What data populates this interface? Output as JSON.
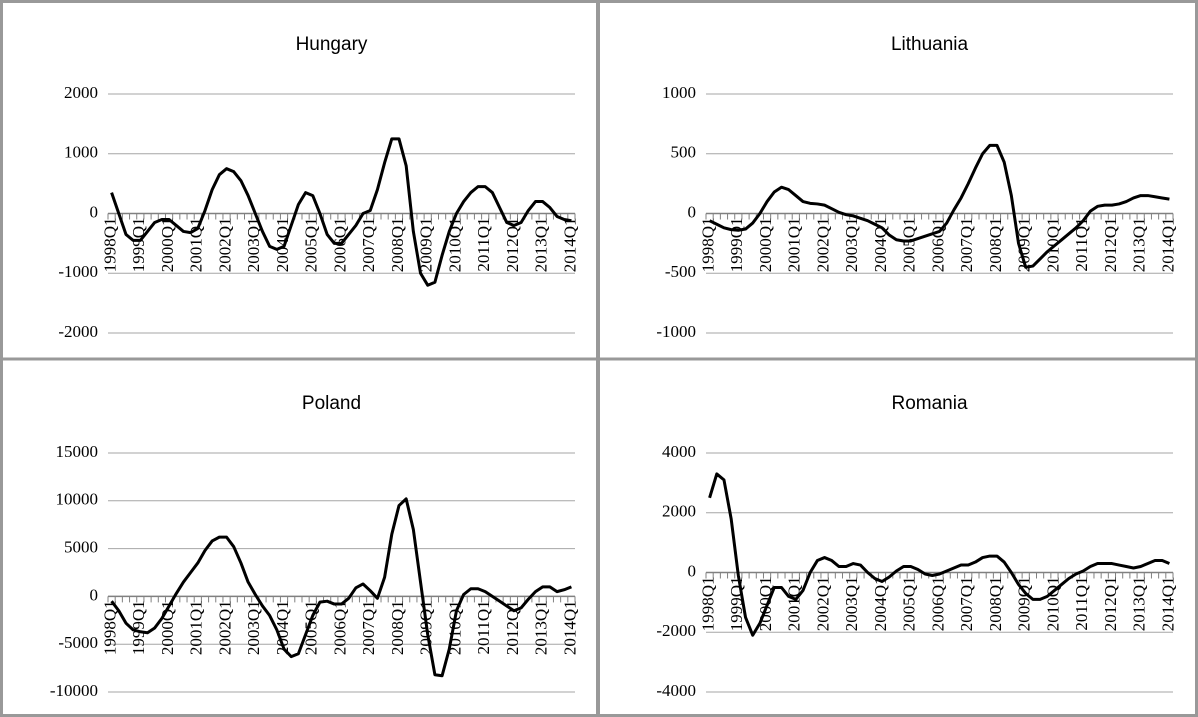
{
  "chart_data": [
    {
      "type": "line",
      "title": "Hungary",
      "color": "#000000",
      "grid": true,
      "categories": [
        "1998Q1",
        null,
        null,
        null,
        "1999Q1",
        null,
        null,
        null,
        "2000Q1",
        null,
        null,
        null,
        "2001Q1",
        null,
        null,
        null,
        "2002Q1",
        null,
        null,
        null,
        "2003Q1",
        null,
        null,
        null,
        "2004Q1",
        null,
        null,
        null,
        "2005Q1",
        null,
        null,
        null,
        "2006Q1",
        null,
        null,
        null,
        "2007Q1",
        null,
        null,
        null,
        "2008Q1",
        null,
        null,
        null,
        "2009Q1",
        null,
        null,
        null,
        "2010Q1",
        null,
        null,
        null,
        "2011Q1",
        null,
        null,
        null,
        "2012Q1",
        null,
        null,
        null,
        "2013Q1",
        null,
        null,
        null,
        "2014Q1"
      ],
      "values": [
        350,
        0,
        -350,
        -450,
        -450,
        -300,
        -150,
        -100,
        -100,
        -200,
        -300,
        -320,
        -250,
        50,
        400,
        650,
        750,
        700,
        550,
        300,
        0,
        -300,
        -550,
        -600,
        -550,
        -200,
        150,
        350,
        300,
        0,
        -350,
        -500,
        -500,
        -350,
        -200,
        0,
        50,
        400,
        850,
        1250,
        1250,
        800,
        -300,
        -1000,
        -1200,
        -1150,
        -700,
        -300,
        0,
        200,
        350,
        450,
        450,
        350,
        100,
        -150,
        -200,
        -150,
        50,
        200,
        200,
        100,
        -50,
        -100,
        -120
      ],
      "ylim": [
        -2000,
        2000
      ],
      "yticks": [
        -2000,
        -1000,
        0,
        1000,
        2000
      ]
    },
    {
      "type": "line",
      "title": "Lithuania",
      "color": "#000000",
      "grid": true,
      "categories": [
        "1998Q1",
        null,
        null,
        null,
        "1999Q1",
        null,
        null,
        null,
        "2000Q1",
        null,
        null,
        null,
        "2001Q1",
        null,
        null,
        null,
        "2002Q1",
        null,
        null,
        null,
        "2003Q1",
        null,
        null,
        null,
        "2004Q1",
        null,
        null,
        null,
        "2005Q1",
        null,
        null,
        null,
        "2006Q1",
        null,
        null,
        null,
        "2007Q1",
        null,
        null,
        null,
        "2008Q1",
        null,
        null,
        null,
        "2009Q1",
        null,
        null,
        null,
        "2010Q1",
        null,
        null,
        null,
        "2011Q1",
        null,
        null,
        null,
        "2012Q1",
        null,
        null,
        null,
        "2013Q1",
        null,
        null,
        null,
        "2014Q1"
      ],
      "values": [
        -60,
        -90,
        -120,
        -135,
        -140,
        -130,
        -80,
        0,
        100,
        180,
        220,
        200,
        150,
        100,
        85,
        80,
        70,
        40,
        10,
        -10,
        -20,
        -40,
        -60,
        -90,
        -120,
        -180,
        -220,
        -230,
        -230,
        -210,
        -190,
        -170,
        -150,
        -80,
        30,
        130,
        250,
        380,
        500,
        570,
        570,
        430,
        150,
        -250,
        -450,
        -440,
        -380,
        -320,
        -270,
        -220,
        -170,
        -120,
        -60,
        20,
        60,
        70,
        70,
        80,
        100,
        130,
        150,
        150,
        140,
        130,
        120
      ],
      "ylim": [
        -1000,
        1000
      ],
      "yticks": [
        -1000,
        -500,
        0,
        500,
        1000
      ]
    },
    {
      "type": "line",
      "title": "Poland",
      "color": "#000000",
      "grid": true,
      "categories": [
        "1998Q1",
        null,
        null,
        null,
        "1999Q1",
        null,
        null,
        null,
        "2000Q1",
        null,
        null,
        null,
        "2001Q1",
        null,
        null,
        null,
        "2002Q1",
        null,
        null,
        null,
        "2003Q1",
        null,
        null,
        null,
        "2004Q1",
        null,
        null,
        null,
        "2005Q1",
        null,
        null,
        null,
        "2006Q1",
        null,
        null,
        null,
        "2007Q1",
        null,
        null,
        null,
        "2008Q1",
        null,
        null,
        null,
        "2009Q1",
        null,
        null,
        null,
        "2010Q1",
        null,
        null,
        null,
        "2011Q1",
        null,
        null,
        null,
        "2012Q1",
        null,
        null,
        null,
        "2013Q1",
        null,
        null,
        null,
        "2014Q1"
      ],
      "values": [
        -500,
        -1500,
        -2800,
        -3500,
        -3700,
        -3800,
        -3300,
        -2300,
        -1000,
        300,
        1500,
        2500,
        3500,
        4800,
        5800,
        6200,
        6200,
        5200,
        3500,
        1500,
        200,
        -1000,
        -2000,
        -3500,
        -5500,
        -6300,
        -6000,
        -4000,
        -2000,
        -600,
        -500,
        -800,
        -800,
        -200,
        900,
        1300,
        600,
        -200,
        2000,
        6500,
        9500,
        10200,
        7000,
        1500,
        -4000,
        -8200,
        -8300,
        -5500,
        -1500,
        200,
        800,
        800,
        500,
        0,
        -500,
        -1000,
        -1500,
        -1200,
        -300,
        500,
        1000,
        1000,
        500,
        700,
        1000
      ],
      "ylim": [
        -10000,
        15000
      ],
      "yticks": [
        -10000,
        -5000,
        0,
        5000,
        10000,
        15000
      ]
    },
    {
      "type": "line",
      "title": "Romania",
      "color": "#000000",
      "grid": true,
      "categories": [
        "1998Q1",
        null,
        null,
        null,
        "1999Q1",
        null,
        null,
        null,
        "2000Q1",
        null,
        null,
        null,
        "2001Q1",
        null,
        null,
        null,
        "2002Q1",
        null,
        null,
        null,
        "2003Q1",
        null,
        null,
        null,
        "2004Q1",
        null,
        null,
        null,
        "2005Q1",
        null,
        null,
        null,
        "2006Q1",
        null,
        null,
        null,
        "2007Q1",
        null,
        null,
        null,
        "2008Q1",
        null,
        null,
        null,
        "2009Q1",
        null,
        null,
        null,
        "2010Q1",
        null,
        null,
        null,
        "2011Q1",
        null,
        null,
        null,
        "2012Q1",
        null,
        null,
        null,
        "2013Q1",
        null,
        null,
        null,
        "2014Q1"
      ],
      "values": [
        2500,
        3300,
        3100,
        1800,
        -100,
        -1500,
        -2100,
        -1700,
        -1100,
        -500,
        -500,
        -800,
        -900,
        -600,
        0,
        400,
        500,
        400,
        200,
        200,
        300,
        250,
        0,
        -200,
        -300,
        -150,
        50,
        200,
        200,
        100,
        -50,
        -100,
        -50,
        50,
        150,
        250,
        250,
        350,
        500,
        550,
        550,
        350,
        0,
        -400,
        -700,
        -900,
        -900,
        -800,
        -600,
        -400,
        -200,
        -50,
        50,
        200,
        300,
        300,
        300,
        250,
        200,
        150,
        200,
        300,
        400,
        400,
        300
      ],
      "ylim": [
        -4000,
        4000
      ],
      "yticks": [
        -4000,
        -2000,
        0,
        2000,
        4000
      ]
    }
  ]
}
